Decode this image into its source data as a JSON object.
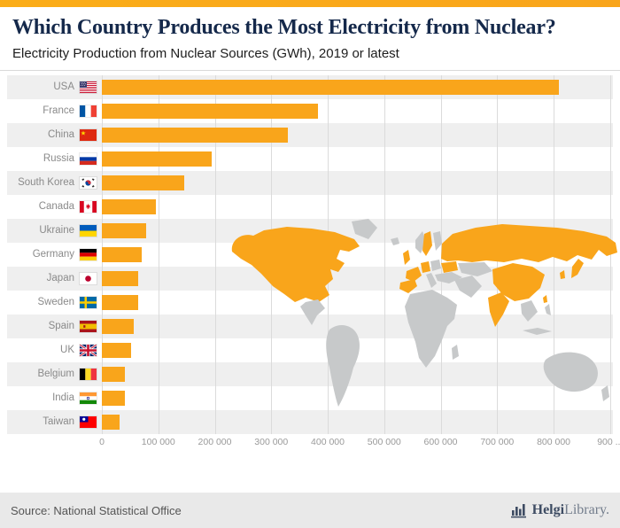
{
  "colors": {
    "accent": "#FBAD18",
    "bar": "#F9A51B",
    "map_land": "#C7C9CA"
  },
  "header": {
    "title": "Which Country Produces the Most Electricity from Nuclear?",
    "subtitle": "Electricity Production from Nuclear Sources (GWh), 2019 or latest"
  },
  "chart_data": {
    "type": "bar",
    "orientation": "horizontal",
    "title": "Which Country Produces the Most Electricity from Nuclear?",
    "subtitle": "Electricity Production from Nuclear Sources (GWh), 2019 or latest",
    "unit": "GWh",
    "categories": [
      "USA",
      "France",
      "China",
      "Russia",
      "South Korea",
      "Canada",
      "Ukraine",
      "Germany",
      "Japan",
      "Sweden",
      "Spain",
      "UK",
      "Belgium",
      "India",
      "Taiwan"
    ],
    "values": [
      809000,
      382000,
      330000,
      195000,
      146000,
      95000,
      78000,
      71000,
      65000,
      64000,
      56000,
      51000,
      41000,
      40000,
      31000
    ],
    "flags": [
      "us",
      "fr",
      "cn",
      "ru",
      "kr",
      "ca",
      "ua",
      "de",
      "jp",
      "se",
      "es",
      "gb",
      "be",
      "in",
      "tw"
    ],
    "xlim": [
      0,
      905000
    ],
    "x_ticks": [
      0,
      100000,
      200000,
      300000,
      400000,
      500000,
      600000,
      700000,
      800000,
      900000
    ],
    "x_tick_labels": [
      "0",
      "100 000",
      "200 000",
      "300 000",
      "400 000",
      "500 000",
      "600 000",
      "700 000",
      "800 000",
      "900 ..."
    ],
    "bar_color": "#F9A51B",
    "grid": true,
    "row_striping": true,
    "background_map": "world map with producing countries highlighted"
  },
  "footer": {
    "source": "Source: National Statistical Office",
    "brand_bold": "Helgi",
    "brand_light": "Library."
  }
}
